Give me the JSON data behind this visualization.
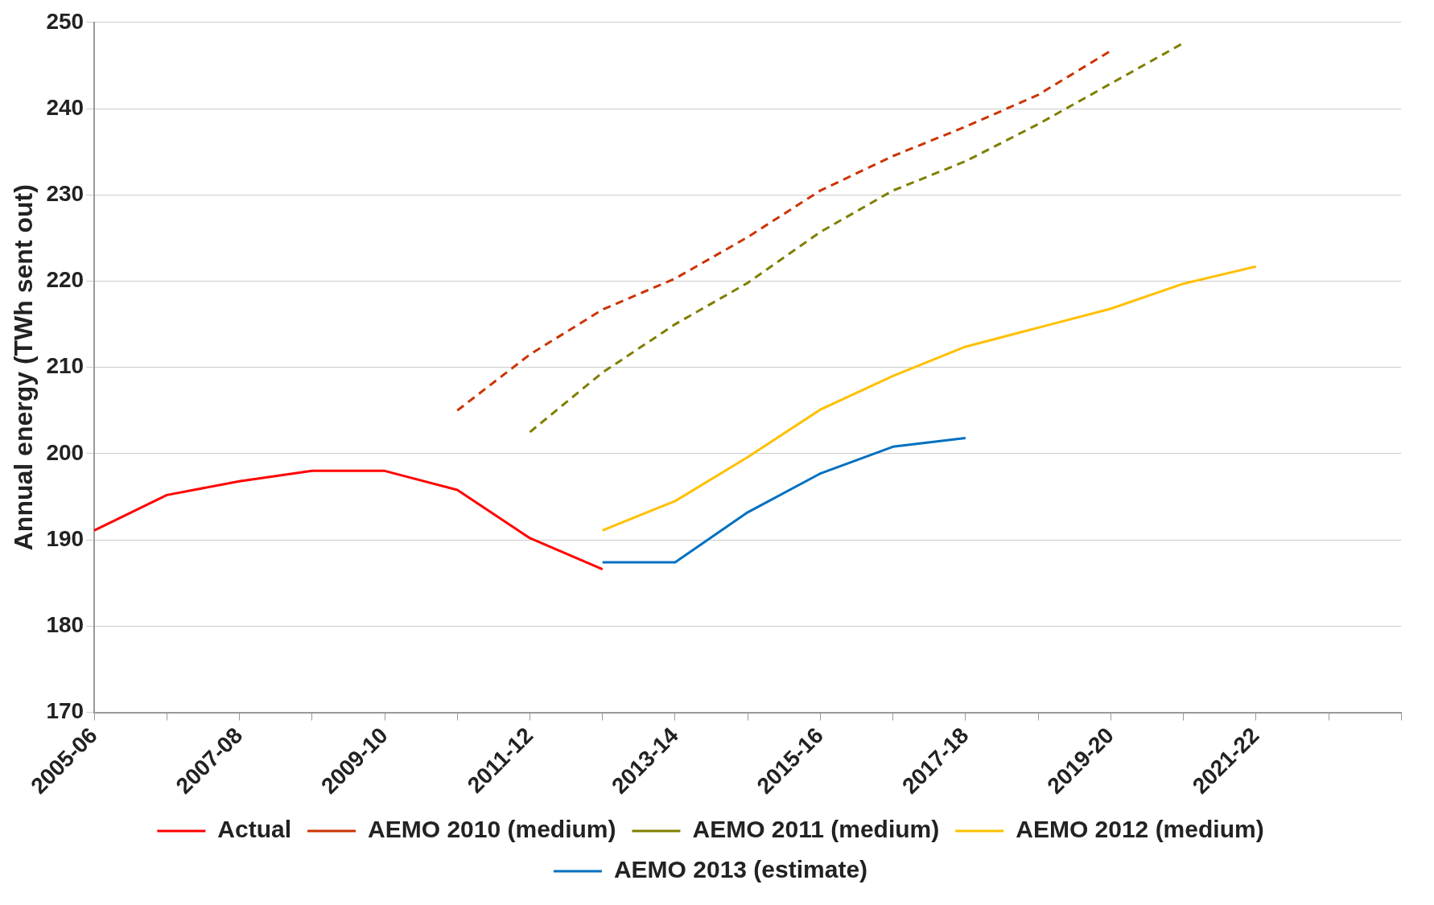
{
  "chart_data": {
    "type": "line",
    "ylabel": "Annual energy (TWh sent out)",
    "categories": [
      "2005-06",
      null,
      "2007-08",
      null,
      "2009-10",
      null,
      "2011-12",
      null,
      "2013-14",
      null,
      "2015-16",
      null,
      "2017-18",
      null,
      "2019-20",
      null,
      "2021-22",
      null,
      null
    ],
    "ylim": [
      170,
      250
    ],
    "yticks": [
      170,
      180,
      190,
      200,
      210,
      220,
      230,
      240,
      250
    ],
    "grid": "y",
    "legend": "bottom",
    "marker": "none",
    "series": [
      {
        "name": "Actual",
        "color": "#ff0000",
        "line_style": "solid",
        "values": [
          191.1,
          195.2,
          196.8,
          198,
          198,
          195.8,
          190.2,
          186.6,
          null,
          null,
          null,
          null,
          null,
          null,
          null,
          null,
          null,
          null,
          null
        ]
      },
      {
        "name": "AEMO 2010 (medium)",
        "color": "#cc3300",
        "line_style": "dashed",
        "values": [
          null,
          null,
          null,
          null,
          null,
          205,
          211.5,
          216.7,
          220.3,
          225.1,
          230.5,
          234.5,
          237.9,
          241.6,
          246.7,
          null,
          null,
          null,
          null
        ]
      },
      {
        "name": "AEMO 2011 (medium)",
        "color": "#7f7f00",
        "line_style": "dashed",
        "values": [
          null,
          null,
          null,
          null,
          null,
          null,
          202.5,
          209.4,
          215,
          219.8,
          225.7,
          230.5,
          233.9,
          238.2,
          242.9,
          247.6,
          null,
          null,
          null
        ]
      },
      {
        "name": "AEMO 2012 (medium)",
        "color": "#ffc000",
        "line_style": "solid",
        "values": [
          null,
          null,
          null,
          null,
          null,
          null,
          null,
          191.1,
          194.5,
          199.6,
          205.1,
          209,
          212.4,
          214.6,
          216.8,
          219.7,
          221.7,
          null,
          null
        ]
      },
      {
        "name": "AEMO 2013 (estimate)",
        "color": "#0070c0",
        "line_style": "solid",
        "values": [
          null,
          null,
          null,
          null,
          null,
          null,
          null,
          187.4,
          187.4,
          193.2,
          197.7,
          200.8,
          201.8,
          null,
          null,
          null,
          null,
          null,
          null
        ]
      }
    ]
  }
}
